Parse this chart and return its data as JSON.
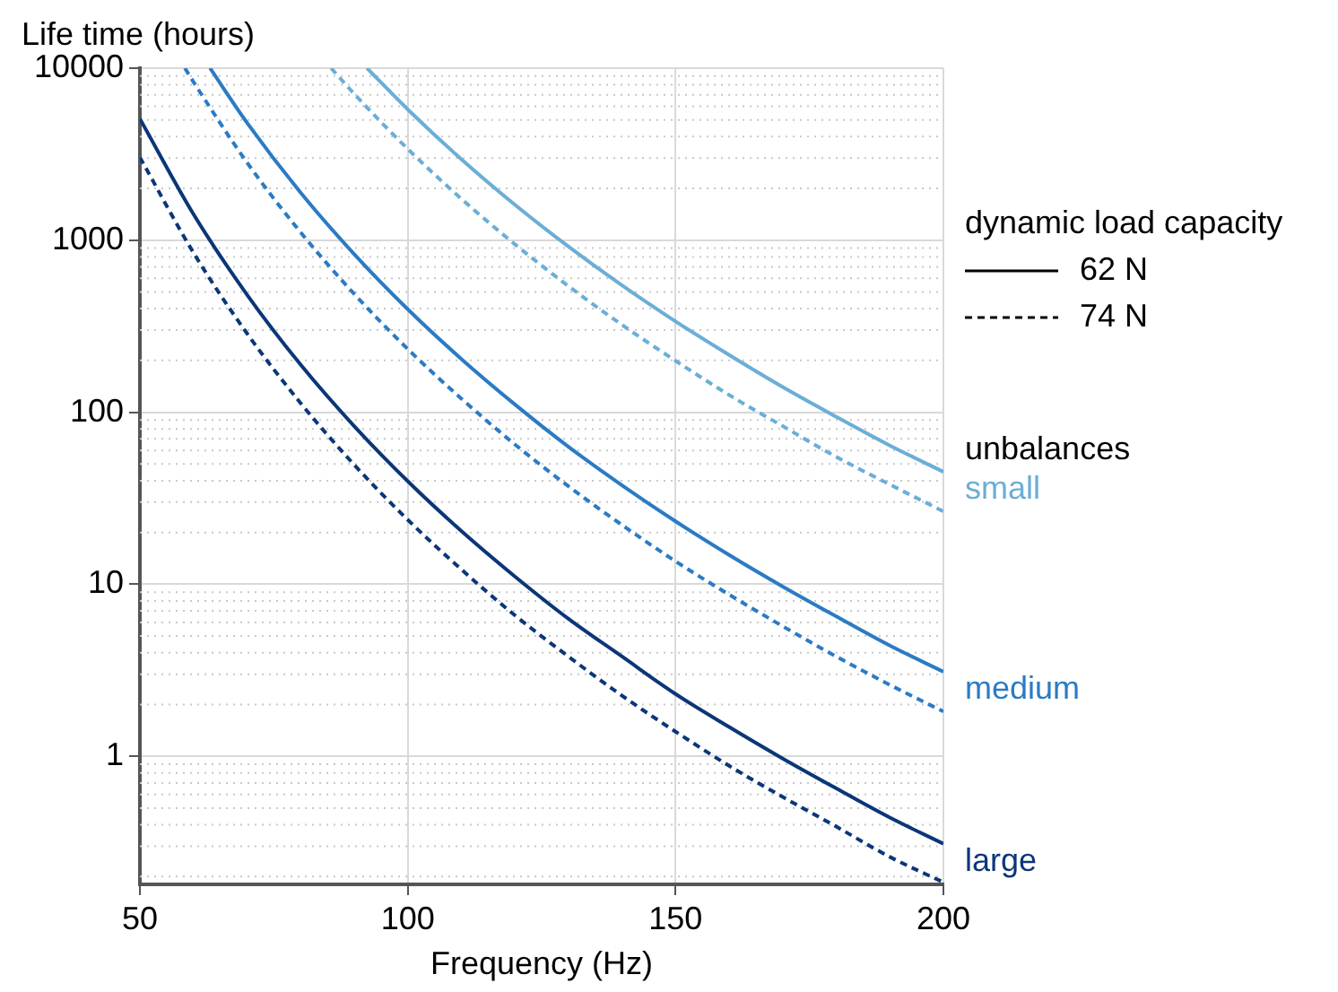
{
  "chart_data": {
    "type": "line",
    "xlabel": "Frequency (Hz)",
    "ylabel": "Life time (hours)",
    "legend_title": "dynamic load capacity",
    "annotations": [
      "62 N",
      "74 N",
      "unbalances"
    ],
    "log": "y",
    "grid": true,
    "marker": "none",
    "xlim": [
      50,
      200
    ],
    "xticks": [
      50,
      100,
      150,
      200
    ],
    "ylim": [
      0.18,
      10000
    ],
    "yticks": [
      1,
      10,
      100,
      1000,
      10000
    ],
    "series": [
      {
        "name": "small",
        "color": "#6baed6",
        "line_style": "solid",
        "x": [
          92.4,
          100,
          110,
          120,
          130,
          140,
          150,
          160,
          170,
          180,
          190,
          200
        ],
        "values": [
          10000,
          5760,
          2956,
          1607,
          918,
          546,
          337,
          215,
          140,
          94,
          64,
          45
        ]
      },
      {
        "color": "#6baed6",
        "line_style": "dashed",
        "x": [
          85.7,
          90,
          100,
          110,
          120,
          130,
          140,
          150,
          160,
          170,
          180,
          190,
          200
        ],
        "values": [
          10000,
          7091,
          3392,
          1741,
          947,
          541,
          322,
          199,
          126,
          83,
          55,
          38,
          26.5
        ]
      },
      {
        "name": "medium",
        "color": "#2b7bc4",
        "line_style": "solid",
        "x": [
          63.1,
          70,
          80,
          90,
          100,
          110,
          120,
          130,
          140,
          150,
          160,
          170,
          180,
          190,
          200
        ],
        "values": [
          10000,
          4816,
          1892,
          830,
          397,
          204,
          111,
          63,
          37.6,
          23.2,
          14.8,
          9.7,
          6.5,
          4.4,
          3.1
        ]
      },
      {
        "color": "#2b7bc4",
        "line_style": "dashed",
        "x": [
          58.4,
          60,
          70,
          80,
          90,
          100,
          110,
          120,
          130,
          140,
          150,
          160,
          170,
          180,
          190,
          200
        ],
        "values": [
          10000,
          8321,
          2828,
          1111,
          487,
          233,
          120,
          65,
          37.1,
          22.1,
          13.6,
          8.7,
          5.7,
          3.8,
          2.6,
          1.82
        ]
      },
      {
        "name": "large",
        "color": "#0b3678",
        "line_style": "solid",
        "x": [
          50,
          60,
          70,
          80,
          90,
          100,
          110,
          120,
          130,
          140,
          150,
          160,
          170,
          180,
          190,
          200
        ],
        "values": [
          5080,
          1417,
          482,
          189,
          83,
          39.7,
          20.4,
          11.1,
          6.3,
          3.8,
          2.3,
          1.48,
          0.97,
          0.65,
          0.44,
          0.31
        ]
      },
      {
        "color": "#0b3678",
        "line_style": "dashed",
        "x": [
          50,
          60,
          70,
          80,
          90,
          100,
          110,
          120,
          130,
          140,
          150,
          160,
          170,
          180,
          190,
          200
        ],
        "values": [
          3030,
          846,
          287,
          113,
          49.5,
          23.7,
          12.2,
          6.6,
          3.8,
          2.25,
          1.39,
          0.88,
          0.58,
          0.39,
          0.26,
          0.185
        ]
      }
    ]
  }
}
